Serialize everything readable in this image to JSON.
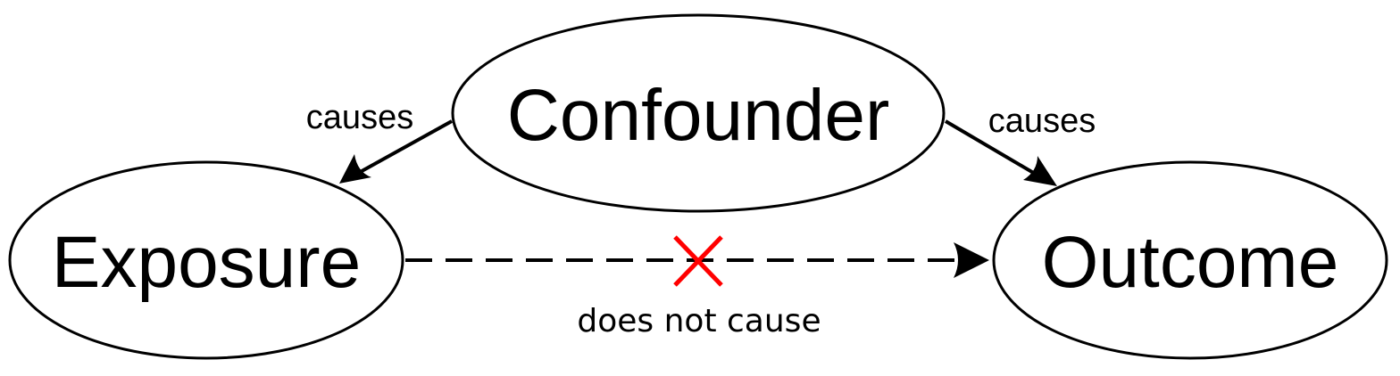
{
  "diagram": {
    "nodes": {
      "confounder": "Confounder",
      "exposure": "Exposure",
      "outcome": "Outcome"
    },
    "edges": {
      "confounder_to_exposure": "causes",
      "confounder_to_outcome": "causes",
      "exposure_to_outcome": "does not cause"
    },
    "colors": {
      "stroke": "#000000",
      "cross": "#ff0000",
      "background": "#ffffff"
    }
  }
}
